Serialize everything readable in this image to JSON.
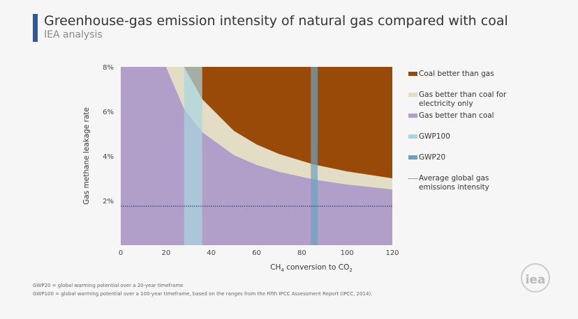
{
  "header": {
    "title": "Greenhouse-gas emission intensity of natural gas compared with coal",
    "subtitle": "IEA analysis"
  },
  "chart_data": {
    "type": "area",
    "title": "Greenhouse-gas emission intensity of natural gas compared with coal",
    "xlabel": "CH4 conversion to CO2",
    "xlabel_parts": {
      "pre": "CH",
      "sub1": "4",
      "mid": " conversion to CO",
      "sub2": "2"
    },
    "ylabel": "Gas methane leakage rate",
    "xlim": [
      0,
      120
    ],
    "ylim": [
      0,
      8
    ],
    "xticks": [
      "0",
      "20",
      "40",
      "60",
      "80",
      "100",
      "120"
    ],
    "xtick_values": [
      0,
      20,
      40,
      60,
      80,
      100,
      120
    ],
    "yticks": [
      "2%",
      "4%",
      "6%",
      "8%"
    ],
    "ytick_values": [
      2,
      4,
      6,
      8
    ],
    "boundaries": {
      "gas_better_upper": {
        "x": [
          20,
          28,
          36,
          50,
          60,
          70,
          85,
          100,
          120
        ],
        "y": [
          8.0,
          6.1,
          5.07,
          4.04,
          3.6,
          3.29,
          2.95,
          2.72,
          2.5
        ]
      },
      "coal_better_lower": {
        "x": [
          28,
          36,
          50,
          60,
          70,
          85,
          100,
          120
        ],
        "y": [
          8.0,
          6.55,
          5.13,
          4.52,
          4.09,
          3.63,
          3.31,
          3.0
        ]
      }
    },
    "bands": [
      {
        "name": "GWP100",
        "x": [
          28,
          36
        ]
      },
      {
        "name": "GWP20",
        "x": [
          84,
          87
        ]
      }
    ],
    "average_line": 1.75,
    "legend": [
      {
        "label": "Coal better than gas",
        "color": "#9a4a08",
        "kind": "box"
      },
      {
        "label": "Gas better than coal for electricity only",
        "color": "#e4ddc6",
        "kind": "box"
      },
      {
        "label": "Gas better than coal",
        "color": "#b19fca",
        "kind": "box"
      },
      {
        "label": "GWP100",
        "color": "#a9d6df",
        "kind": "box"
      },
      {
        "label": "GWP20",
        "color": "#6da3bd",
        "kind": "box"
      },
      {
        "label": "Average global gas emissions intensity",
        "color": "#3a3a6a",
        "kind": "dotted"
      }
    ],
    "legend_position": "right"
  },
  "footnotes": [
    "GWP20 = global warming potential over a 20-year timeframe",
    "GWP100 = global warming potential over a 100-year timeframe, based on the ranges from the Fifth IPCC Assessment Report (IPCC, 2014)."
  ],
  "logo": "iea"
}
